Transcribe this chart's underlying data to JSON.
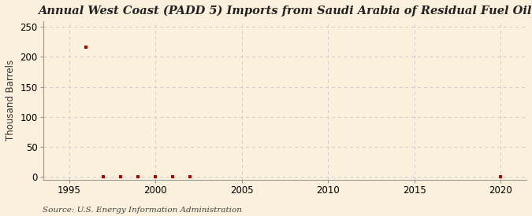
{
  "title": "Annual West Coast (PADD 5) Imports from Saudi Arabia of Residual Fuel Oil",
  "ylabel": "Thousand Barrels",
  "source": "Source: U.S. Energy Information Administration",
  "background_color": "#faf0dc",
  "plot_background_color": "#faf0dc",
  "xlim": [
    1993.5,
    2021.5
  ],
  "ylim": [
    -5,
    260
  ],
  "yticks": [
    0,
    50,
    100,
    150,
    200,
    250
  ],
  "xticks": [
    1995,
    2000,
    2005,
    2010,
    2015,
    2020
  ],
  "data_points": {
    "years": [
      1996,
      1997,
      1998,
      1999,
      2000,
      2001,
      2002,
      2020
    ],
    "values": [
      216,
      0,
      0,
      0,
      0,
      0,
      0,
      0
    ]
  },
  "marker_color": "#aa0000",
  "marker_size": 3.5,
  "grid_color": "#cccccc",
  "grid_linestyle": "--",
  "title_fontsize": 10.5,
  "label_fontsize": 8.5,
  "tick_fontsize": 8.5,
  "source_fontsize": 7.5
}
